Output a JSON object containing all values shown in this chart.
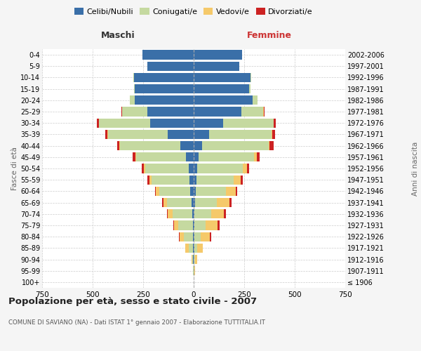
{
  "age_groups": [
    "100+",
    "95-99",
    "90-94",
    "85-89",
    "80-84",
    "75-79",
    "70-74",
    "65-69",
    "60-64",
    "55-59",
    "50-54",
    "45-49",
    "40-44",
    "35-39",
    "30-34",
    "25-29",
    "20-24",
    "15-19",
    "10-14",
    "5-9",
    "0-4"
  ],
  "birth_years": [
    "≤ 1906",
    "1907-1911",
    "1912-1916",
    "1917-1921",
    "1922-1926",
    "1927-1931",
    "1932-1936",
    "1937-1941",
    "1942-1946",
    "1947-1951",
    "1952-1956",
    "1957-1961",
    "1962-1966",
    "1967-1971",
    "1972-1976",
    "1977-1981",
    "1982-1986",
    "1987-1991",
    "1992-1996",
    "1997-2001",
    "2002-2006"
  ],
  "colors": {
    "celibi": "#3a6fa8",
    "coniugati": "#c5d9a0",
    "vedovi": "#f5c96a",
    "divorziati": "#cc2222"
  },
  "males": {
    "celibi": [
      0,
      1,
      2,
      5,
      5,
      5,
      7,
      12,
      16,
      20,
      26,
      38,
      65,
      130,
      215,
      230,
      290,
      290,
      295,
      230,
      255
    ],
    "coniugati": [
      0,
      2,
      5,
      20,
      45,
      72,
      98,
      120,
      155,
      190,
      215,
      248,
      300,
      295,
      255,
      125,
      25,
      5,
      3,
      0,
      0
    ],
    "vedovi": [
      0,
      2,
      5,
      15,
      20,
      20,
      22,
      18,
      15,
      10,
      5,
      3,
      2,
      1,
      0,
      0,
      0,
      0,
      0,
      0,
      0
    ],
    "divorziati": [
      0,
      0,
      0,
      0,
      2,
      5,
      5,
      5,
      5,
      8,
      10,
      13,
      10,
      12,
      8,
      3,
      2,
      0,
      0,
      0,
      0
    ]
  },
  "females": {
    "celibi": [
      0,
      1,
      1,
      2,
      3,
      4,
      5,
      8,
      10,
      14,
      18,
      25,
      40,
      75,
      145,
      235,
      290,
      275,
      280,
      225,
      240
    ],
    "coniugati": [
      0,
      2,
      5,
      15,
      30,
      55,
      82,
      108,
      148,
      185,
      225,
      275,
      330,
      310,
      250,
      110,
      25,
      5,
      3,
      0,
      0
    ],
    "vedovi": [
      0,
      4,
      12,
      28,
      48,
      60,
      62,
      60,
      50,
      35,
      20,
      12,
      6,
      3,
      2,
      1,
      0,
      0,
      0,
      0,
      0
    ],
    "divorziati": [
      0,
      0,
      0,
      1,
      5,
      8,
      10,
      10,
      8,
      10,
      12,
      15,
      20,
      15,
      10,
      4,
      2,
      1,
      0,
      0,
      0
    ]
  },
  "title": "Popolazione per età, sesso e stato civile - 2007",
  "subtitle": "COMUNE DI SAVIANO (NA) - Dati ISTAT 1° gennaio 2007 - Elaborazione TUTTITALIA.IT",
  "xlabel_left": "Maschi",
  "xlabel_right": "Femmine",
  "ylabel_left": "Fasce di età",
  "ylabel_right": "Anni di nascita",
  "xlim": 750,
  "legend_labels": [
    "Celibi/Nubili",
    "Coniugati/e",
    "Vedovi/e",
    "Divorziati/e"
  ],
  "bg_color": "#f5f5f5",
  "plot_bg": "#ffffff",
  "grid_color": "#cccccc"
}
